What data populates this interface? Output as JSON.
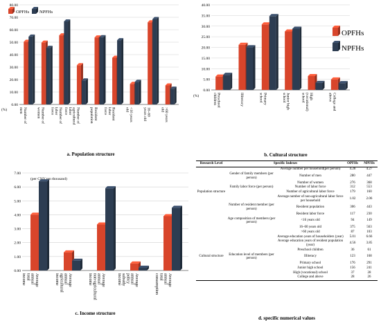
{
  "colors": {
    "opfhs": "#d8452b",
    "npfhs": "#2d3d52",
    "grid": "#d0d0d0",
    "axis": "#666666"
  },
  "chart_data": [
    {
      "id": "a",
      "type": "bar",
      "caption": "a. Population structure",
      "unit_label": "(%)",
      "ylim": [
        0,
        80
      ],
      "yticks": [
        "0.00",
        "10.00",
        "20.00",
        "30.00",
        "40.00",
        "50.00",
        "60.00",
        "70.00",
        "80.00"
      ],
      "legend": "top-left",
      "categories": [
        "Number of men",
        "Number of women",
        "Number of labor force",
        "Number of agricultural labor force",
        "Resident population",
        "Resident labor force",
        "<16 years old",
        "16–60 years old",
        ">60 years old"
      ],
      "series": [
        {
          "name": "OPFHs",
          "values": [
            50.33,
            49.67,
            55.5,
            31.5,
            53.8,
            37.5,
            16.5,
            66.0,
            15.3
          ]
        },
        {
          "name": "NPFHs",
          "values": [
            54.5,
            45.5,
            66.7,
            19.3,
            54.0,
            51.6,
            18.2,
            68.6,
            12.7
          ]
        }
      ]
    },
    {
      "id": "b",
      "type": "bar",
      "caption": "b. Cultural structure",
      "unit_label": "(%)",
      "ylim": [
        0,
        40
      ],
      "yticks": [
        "0.00",
        "5.00",
        "10.00",
        "15.00",
        "20.00",
        "25.00",
        "30.00",
        "35.00",
        "40.00"
      ],
      "legend": "right",
      "categories": [
        "Preschool children",
        "Illiteracy",
        "Primary school",
        "Junior high school",
        "High (vocational) school",
        "College and above"
      ],
      "series": [
        {
          "name": "OPFHs",
          "values": [
            6.3,
            21.2,
            30.8,
            27.5,
            6.5,
            4.9
          ]
        },
        {
          "name": "NPFHs",
          "values": [
            7.1,
            20.1,
            34.7,
            28.8,
            3.3,
            3.2
          ]
        }
      ]
    },
    {
      "id": "c",
      "type": "bar",
      "caption": "c. Income structure",
      "unit_label": "(per CNY ten thousand)",
      "ylim": [
        0,
        7
      ],
      "yticks": [
        "0.00",
        "1.00",
        "2.00",
        "3.00",
        "4.00",
        "5.00",
        "6.00",
        "7.00"
      ],
      "categories": [
        "Average annual total income",
        "Average annual agricultural income",
        "Average annual non-agricultural income",
        "Average annual policy subsidy income",
        "Average annual total consumption"
      ],
      "series": [
        {
          "name": "OPFHs",
          "values": [
            4.0,
            1.3,
            3.3,
            0.5,
            3.9
          ]
        },
        {
          "name": "NPFHs",
          "values": [
            6.4,
            0.7,
            5.9,
            0.2,
            4.5
          ]
        }
      ]
    }
  ],
  "table": {
    "caption": "d. specific numerical values",
    "headers": [
      "Research Level",
      "Specific Indexes",
      "",
      "OPFHs",
      "NPFHs"
    ],
    "rows": [
      {
        "level": "",
        "group": "",
        "index": "Average number per household(per person)",
        "o": "4.28",
        "n": "4.27"
      },
      {
        "level": "",
        "group": "Gender of family members (per person)",
        "index": "Number of men",
        "o": "280",
        "n": "447"
      },
      {
        "level": "",
        "group": "",
        "index": "Number of women",
        "o": "276",
        "n": "368"
      },
      {
        "level": "",
        "group": "Family labor force (per person)",
        "index": "Number of labor force",
        "o": "312",
        "n": "553"
      },
      {
        "level": "Population structure",
        "group": "",
        "index": "Number of agricultural labor force",
        "o": "179",
        "n": "160"
      },
      {
        "level": "",
        "group": "",
        "index": "Average number of non-agricultural labor force per household",
        "o": "1.02",
        "n": "2.06"
      },
      {
        "level": "",
        "group": "Number of resident member (per person)",
        "index": "Resident population",
        "o": "306",
        "n": "443"
      },
      {
        "level": "",
        "group": "",
        "index": "Resident labor force",
        "o": "117",
        "n": "230"
      },
      {
        "level": "",
        "group": "Age composition of members (per person)",
        "index": "<16 years old",
        "o": "94",
        "n": "149"
      },
      {
        "level": "",
        "group": "",
        "index": "16–60 years old",
        "o": "375",
        "n": "563"
      },
      {
        "level": "",
        "group": "",
        "index": ">60 years old",
        "o": "87",
        "n": "103"
      },
      {
        "level": "",
        "group": "",
        "index": "Average education years of householders (year)",
        "o": "5.01",
        "n": "6.66"
      },
      {
        "level": "",
        "group": "",
        "index": "Average education years of resident population (year)",
        "o": "4.56",
        "n": "3.85"
      },
      {
        "level": "",
        "group": "",
        "index": "Preschool children",
        "o": "36",
        "n": "61"
      },
      {
        "level": "Cultural structure",
        "group": "Education level of members (per person)",
        "index": "Illiteracy",
        "o": "123",
        "n": "168"
      },
      {
        "level": "",
        "group": "",
        "index": "Primary school",
        "o": "176",
        "n": "291"
      },
      {
        "level": "",
        "group": "",
        "index": "Junior high school",
        "o": "156",
        "n": "241"
      },
      {
        "level": "",
        "group": "",
        "index": "High (vocational) school",
        "o": "37",
        "n": "28"
      },
      {
        "level": "",
        "group": "",
        "index": "College and above",
        "o": "28",
        "n": "26"
      }
    ]
  }
}
